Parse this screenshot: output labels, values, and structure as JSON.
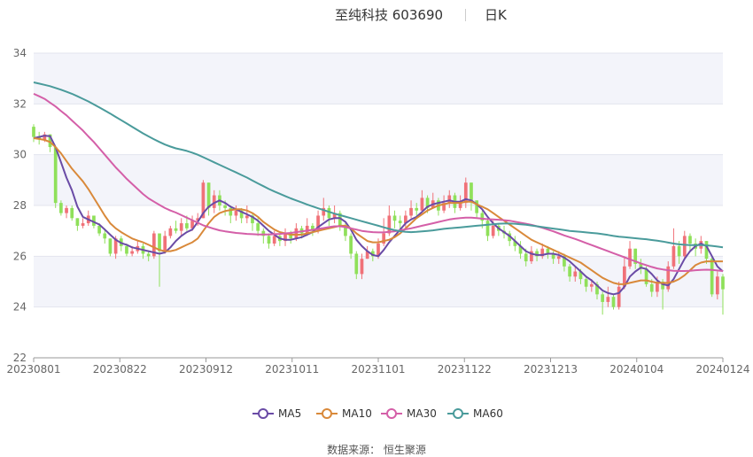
{
  "header": {
    "title": "至纯科技 603690",
    "period": "日K"
  },
  "source_text": "数据来源： 恒生聚源",
  "colors": {
    "up": "#f07178",
    "down": "#8fe05a",
    "ma5": "#6a4ba6",
    "ma10": "#d9893a",
    "ma30": "#d45fa8",
    "ma60": "#4a9b9b",
    "band": "#f3f4fa",
    "grid": "#e3e5ee"
  },
  "chart_data": {
    "type": "candlestick",
    "title": "至纯科技 603690 日K",
    "ylim": [
      22,
      34
    ],
    "y_ticks": [
      "22",
      "24",
      "26",
      "28",
      "30",
      "32",
      "34"
    ],
    "x_ticks": [
      "20230801",
      "20230822",
      "20230912",
      "20231011",
      "20231101",
      "20231122",
      "20231213",
      "20240104",
      "20240124"
    ],
    "grid": true,
    "legend_position": "bottom",
    "legend": [
      "MA5",
      "MA10",
      "MA30",
      "MA60"
    ],
    "candles": [
      [
        31.1,
        30.7,
        31.2,
        30.5
      ],
      [
        30.7,
        30.6,
        30.9,
        30.4
      ],
      [
        30.6,
        30.8,
        30.9,
        30.5
      ],
      [
        30.8,
        30.3,
        30.8,
        30.1
      ],
      [
        30.3,
        28.1,
        30.3,
        27.9
      ],
      [
        28.1,
        27.7,
        28.2,
        27.6
      ],
      [
        27.7,
        27.9,
        28.0,
        27.5
      ],
      [
        27.9,
        27.5,
        28.0,
        27.4
      ],
      [
        27.5,
        27.2,
        27.5,
        27.0
      ],
      [
        27.2,
        27.3,
        27.5,
        27.1
      ],
      [
        27.3,
        27.6,
        27.8,
        27.2
      ],
      [
        27.6,
        27.2,
        27.6,
        27.1
      ],
      [
        27.2,
        26.9,
        27.3,
        26.8
      ],
      [
        26.9,
        26.7,
        27.1,
        26.5
      ],
      [
        26.7,
        26.1,
        26.7,
        26.0
      ],
      [
        26.1,
        26.7,
        26.8,
        25.9
      ],
      [
        26.7,
        26.4,
        26.8,
        26.2
      ],
      [
        26.4,
        26.1,
        26.5,
        26.0
      ],
      [
        26.1,
        26.2,
        26.4,
        26.0
      ],
      [
        26.2,
        26.4,
        26.6,
        26.1
      ],
      [
        26.4,
        26.1,
        26.5,
        25.9
      ],
      [
        26.1,
        26.0,
        26.2,
        25.8
      ],
      [
        26.0,
        26.9,
        27.0,
        25.9
      ],
      [
        26.9,
        26.2,
        26.9,
        24.8
      ],
      [
        26.2,
        26.8,
        27.0,
        26.1
      ],
      [
        26.8,
        27.1,
        27.2,
        26.7
      ],
      [
        27.1,
        27.0,
        27.4,
        26.9
      ],
      [
        27.0,
        27.3,
        27.5,
        26.8
      ],
      [
        27.3,
        27.1,
        27.6,
        27.0
      ],
      [
        27.1,
        27.4,
        27.6,
        27.0
      ],
      [
        27.4,
        27.5,
        27.7,
        27.2
      ],
      [
        27.5,
        28.9,
        29.0,
        27.5
      ],
      [
        28.9,
        27.9,
        28.9,
        27.6
      ],
      [
        27.9,
        28.4,
        28.6,
        27.7
      ],
      [
        28.4,
        28.0,
        28.6,
        27.8
      ],
      [
        28.0,
        27.9,
        28.2,
        27.6
      ],
      [
        27.9,
        27.6,
        28.0,
        27.3
      ],
      [
        27.6,
        27.8,
        28.0,
        27.4
      ],
      [
        27.8,
        27.5,
        27.9,
        27.3
      ],
      [
        27.5,
        27.6,
        28.0,
        27.3
      ],
      [
        27.6,
        27.3,
        27.7,
        27.0
      ],
      [
        27.3,
        27.0,
        27.5,
        26.8
      ],
      [
        27.0,
        26.8,
        27.1,
        26.5
      ],
      [
        26.8,
        26.5,
        26.9,
        26.3
      ],
      [
        26.5,
        26.8,
        27.0,
        26.4
      ],
      [
        26.8,
        26.6,
        26.9,
        26.4
      ],
      [
        26.6,
        26.9,
        27.1,
        26.4
      ],
      [
        26.9,
        26.7,
        27.0,
        26.5
      ],
      [
        26.7,
        27.1,
        27.3,
        26.6
      ],
      [
        27.1,
        26.9,
        27.2,
        26.7
      ],
      [
        26.9,
        27.2,
        27.5,
        26.8
      ],
      [
        27.2,
        27.0,
        27.3,
        26.8
      ],
      [
        27.0,
        27.6,
        27.8,
        26.9
      ],
      [
        27.6,
        27.9,
        28.3,
        27.4
      ],
      [
        27.9,
        27.5,
        28.0,
        27.2
      ],
      [
        27.5,
        27.7,
        28.0,
        27.3
      ],
      [
        27.7,
        27.2,
        27.8,
        27.0
      ],
      [
        27.2,
        26.8,
        27.3,
        26.6
      ],
      [
        26.8,
        26.1,
        26.9,
        25.9
      ],
      [
        26.1,
        25.3,
        26.2,
        25.1
      ],
      [
        25.3,
        25.9,
        26.1,
        25.1
      ],
      [
        25.9,
        26.2,
        26.4,
        25.9
      ],
      [
        26.2,
        26.0,
        26.3,
        25.8
      ],
      [
        26.0,
        26.5,
        26.7,
        25.9
      ],
      [
        26.5,
        26.9,
        27.5,
        26.4
      ],
      [
        26.9,
        27.6,
        28.0,
        26.8
      ],
      [
        27.6,
        27.4,
        27.8,
        27.1
      ],
      [
        27.4,
        27.3,
        27.6,
        27.0
      ],
      [
        27.3,
        27.6,
        27.8,
        27.1
      ],
      [
        27.6,
        27.9,
        28.2,
        27.5
      ],
      [
        27.9,
        27.8,
        28.1,
        27.6
      ],
      [
        27.8,
        28.3,
        28.6,
        27.7
      ],
      [
        28.3,
        27.9,
        28.4,
        27.7
      ],
      [
        27.9,
        28.2,
        28.5,
        27.9
      ],
      [
        28.2,
        27.8,
        28.3,
        27.6
      ],
      [
        27.8,
        28.1,
        28.4,
        27.7
      ],
      [
        28.1,
        28.4,
        28.6,
        27.9
      ],
      [
        28.4,
        27.9,
        28.5,
        27.7
      ],
      [
        27.9,
        28.1,
        28.4,
        27.8
      ],
      [
        28.1,
        28.9,
        29.1,
        27.9
      ],
      [
        28.9,
        28.2,
        28.9,
        27.8
      ],
      [
        28.2,
        27.7,
        28.2,
        27.5
      ],
      [
        27.7,
        27.4,
        27.8,
        27.1
      ],
      [
        27.4,
        26.8,
        27.5,
        26.6
      ],
      [
        26.8,
        27.2,
        27.4,
        26.7
      ],
      [
        27.2,
        27.0,
        27.3,
        26.8
      ],
      [
        27.0,
        26.9,
        27.2,
        26.7
      ],
      [
        26.9,
        26.6,
        27.0,
        26.4
      ],
      [
        26.6,
        26.4,
        26.8,
        26.2
      ],
      [
        26.4,
        26.1,
        26.6,
        25.9
      ],
      [
        26.1,
        25.8,
        26.3,
        25.6
      ],
      [
        25.8,
        26.2,
        26.4,
        25.7
      ],
      [
        26.2,
        26.0,
        26.3,
        25.8
      ],
      [
        26.0,
        26.3,
        26.5,
        25.9
      ],
      [
        26.3,
        26.1,
        26.4,
        25.9
      ],
      [
        26.1,
        25.9,
        26.2,
        25.7
      ],
      [
        25.9,
        26.0,
        26.2,
        25.7
      ],
      [
        26.0,
        25.6,
        26.1,
        25.4
      ],
      [
        25.6,
        25.2,
        25.7,
        25.0
      ],
      [
        25.2,
        25.4,
        25.6,
        25.0
      ],
      [
        25.4,
        25.1,
        25.5,
        24.9
      ],
      [
        25.1,
        24.8,
        25.2,
        24.6
      ],
      [
        24.8,
        24.9,
        25.1,
        24.6
      ],
      [
        24.9,
        24.5,
        25.0,
        24.3
      ],
      [
        24.5,
        24.2,
        24.6,
        23.7
      ],
      [
        24.2,
        24.4,
        24.8,
        24.0
      ],
      [
        24.4,
        24.0,
        24.5,
        23.9
      ],
      [
        24.0,
        24.8,
        25.0,
        23.9
      ],
      [
        24.8,
        25.6,
        26.0,
        24.7
      ],
      [
        25.6,
        26.3,
        26.6,
        25.5
      ],
      [
        26.3,
        25.7,
        26.3,
        25.5
      ],
      [
        25.7,
        25.5,
        25.9,
        25.3
      ],
      [
        25.5,
        24.9,
        25.6,
        24.8
      ],
      [
        24.9,
        24.6,
        25.1,
        24.4
      ],
      [
        24.6,
        25.0,
        25.2,
        24.4
      ],
      [
        25.0,
        24.7,
        25.1,
        23.9
      ],
      [
        24.7,
        25.6,
        25.8,
        24.6
      ],
      [
        25.6,
        26.4,
        27.1,
        25.5
      ],
      [
        26.4,
        26.0,
        26.6,
        25.7
      ],
      [
        26.0,
        26.8,
        27.0,
        25.9
      ],
      [
        26.8,
        26.5,
        26.9,
        26.2
      ],
      [
        26.5,
        26.3,
        26.7,
        26.0
      ],
      [
        26.3,
        26.6,
        26.8,
        26.1
      ],
      [
        26.6,
        25.9,
        26.6,
        25.7
      ],
      [
        25.9,
        24.5,
        26.0,
        24.4
      ],
      [
        24.5,
        25.2,
        25.4,
        24.3
      ],
      [
        25.2,
        24.7,
        25.3,
        23.7
      ]
    ],
    "series": [
      {
        "name": "MA5",
        "values": [
          30.65,
          30.7,
          30.75,
          30.73,
          30.3,
          29.7,
          29.1,
          28.6,
          27.95,
          27.55,
          27.45,
          27.35,
          27.25,
          27.05,
          26.85,
          26.65,
          26.52,
          26.45,
          26.35,
          26.3,
          26.25,
          26.2,
          26.15,
          26.1,
          26.15,
          26.35,
          26.6,
          26.8,
          26.95,
          27.05,
          27.35,
          27.7,
          27.95,
          28.1,
          28.2,
          28.1,
          27.95,
          27.85,
          27.75,
          27.65,
          27.55,
          27.4,
          27.2,
          27.0,
          26.85,
          26.7,
          26.65,
          26.65,
          26.7,
          26.75,
          26.85,
          26.95,
          27.15,
          27.3,
          27.45,
          27.5,
          27.5,
          27.35,
          27.05,
          26.65,
          26.4,
          26.2,
          26.05,
          26.0,
          26.25,
          26.55,
          26.8,
          27.05,
          27.3,
          27.45,
          27.55,
          27.75,
          27.95,
          28.05,
          28.1,
          28.15,
          28.2,
          28.15,
          28.15,
          28.25,
          28.2,
          28.05,
          27.85,
          27.55,
          27.3,
          27.1,
          26.95,
          26.8,
          26.6,
          26.4,
          26.2,
          26.1,
          26.05,
          26.05,
          26.1,
          26.1,
          26.05,
          25.95,
          25.8,
          25.6,
          25.4,
          25.2,
          25.05,
          24.85,
          24.65,
          24.55,
          24.5,
          24.55,
          24.8,
          25.2,
          25.4,
          25.55,
          25.5,
          25.3,
          25.05,
          24.9,
          24.85,
          25.1,
          25.5,
          25.9,
          26.2,
          26.4,
          26.5,
          26.4,
          26.0,
          25.6,
          25.4
        ]
      },
      {
        "name": "MA10",
        "values": [
          30.65,
          30.62,
          30.58,
          30.5,
          30.3,
          30.05,
          29.75,
          29.45,
          29.2,
          28.95,
          28.65,
          28.3,
          27.95,
          27.6,
          27.3,
          27.1,
          26.95,
          26.82,
          26.7,
          26.62,
          26.55,
          26.45,
          26.35,
          26.25,
          26.2,
          26.2,
          26.25,
          26.35,
          26.45,
          26.55,
          26.7,
          27.0,
          27.3,
          27.55,
          27.7,
          27.78,
          27.82,
          27.85,
          27.85,
          27.8,
          27.7,
          27.55,
          27.35,
          27.2,
          27.05,
          26.95,
          26.9,
          26.85,
          26.85,
          26.85,
          26.9,
          26.95,
          27.0,
          27.05,
          27.1,
          27.15,
          27.2,
          27.2,
          27.1,
          26.9,
          26.75,
          26.6,
          26.55,
          26.55,
          26.6,
          26.65,
          26.75,
          26.9,
          27.1,
          27.3,
          27.5,
          27.65,
          27.8,
          27.9,
          28.0,
          28.05,
          28.1,
          28.1,
          28.1,
          28.15,
          28.15,
          28.05,
          27.95,
          27.85,
          27.7,
          27.55,
          27.4,
          27.25,
          27.1,
          26.95,
          26.8,
          26.65,
          26.55,
          26.45,
          26.35,
          26.25,
          26.15,
          26.05,
          25.95,
          25.85,
          25.75,
          25.6,
          25.45,
          25.3,
          25.15,
          25.05,
          24.95,
          24.9,
          24.9,
          24.95,
          25.0,
          25.05,
          25.05,
          25.0,
          24.95,
          24.95,
          24.95,
          25.0,
          25.1,
          25.25,
          25.45,
          25.65,
          25.75,
          25.8,
          25.8,
          25.8,
          25.8
        ]
      },
      {
        "name": "MA30",
        "values": [
          32.4,
          32.3,
          32.2,
          32.05,
          31.9,
          31.72,
          31.55,
          31.35,
          31.15,
          30.95,
          30.72,
          30.5,
          30.25,
          30.0,
          29.75,
          29.5,
          29.28,
          29.05,
          28.85,
          28.65,
          28.45,
          28.28,
          28.15,
          28.02,
          27.9,
          27.8,
          27.72,
          27.62,
          27.52,
          27.42,
          27.32,
          27.22,
          27.15,
          27.08,
          27.02,
          26.98,
          26.95,
          26.92,
          26.9,
          26.88,
          26.87,
          26.86,
          26.86,
          26.86,
          26.87,
          26.88,
          26.9,
          26.92,
          26.95,
          26.98,
          27.01,
          27.04,
          27.08,
          27.11,
          27.15,
          27.18,
          27.18,
          27.15,
          27.1,
          27.05,
          27.0,
          26.97,
          26.95,
          26.94,
          26.94,
          26.96,
          26.98,
          27.02,
          27.06,
          27.1,
          27.15,
          27.2,
          27.25,
          27.3,
          27.35,
          27.4,
          27.45,
          27.48,
          27.5,
          27.52,
          27.52,
          27.5,
          27.48,
          27.46,
          27.45,
          27.44,
          27.42,
          27.4,
          27.36,
          27.32,
          27.28,
          27.24,
          27.18,
          27.12,
          27.05,
          26.98,
          26.9,
          26.82,
          26.75,
          26.68,
          26.6,
          26.52,
          26.44,
          26.36,
          26.28,
          26.2,
          26.12,
          26.04,
          25.96,
          25.88,
          25.8,
          25.72,
          25.65,
          25.58,
          25.52,
          25.48,
          25.45,
          25.43,
          25.42,
          25.42,
          25.43,
          25.45,
          25.46,
          25.47,
          25.46,
          25.44,
          25.42
        ]
      },
      {
        "name": "MA60",
        "values": [
          32.85,
          32.8,
          32.75,
          32.7,
          32.63,
          32.56,
          32.48,
          32.4,
          32.3,
          32.2,
          32.1,
          31.98,
          31.86,
          31.74,
          31.62,
          31.49,
          31.36,
          31.23,
          31.1,
          30.97,
          30.84,
          30.72,
          30.61,
          30.5,
          30.4,
          30.32,
          30.25,
          30.2,
          30.15,
          30.08,
          30.0,
          29.9,
          29.8,
          29.7,
          29.6,
          29.5,
          29.4,
          29.3,
          29.2,
          29.1,
          28.98,
          28.87,
          28.76,
          28.65,
          28.55,
          28.46,
          28.37,
          28.28,
          28.2,
          28.12,
          28.04,
          27.96,
          27.89,
          27.82,
          27.75,
          27.68,
          27.62,
          27.56,
          27.5,
          27.44,
          27.38,
          27.32,
          27.26,
          27.2,
          27.14,
          27.08,
          27.03,
          26.99,
          26.96,
          26.95,
          26.96,
          26.98,
          27.0,
          27.02,
          27.05,
          27.08,
          27.1,
          27.12,
          27.14,
          27.16,
          27.18,
          27.2,
          27.22,
          27.24,
          27.26,
          27.28,
          27.29,
          27.29,
          27.28,
          27.26,
          27.24,
          27.21,
          27.18,
          27.15,
          27.12,
          27.09,
          27.06,
          27.03,
          27.0,
          26.98,
          26.96,
          26.94,
          26.92,
          26.9,
          26.87,
          26.84,
          26.8,
          26.77,
          26.75,
          26.73,
          26.71,
          26.69,
          26.67,
          26.64,
          26.61,
          26.58,
          26.54,
          26.5,
          26.47,
          26.45,
          26.44,
          26.44,
          26.44,
          26.43,
          26.41,
          26.38,
          26.35
        ]
      }
    ]
  }
}
